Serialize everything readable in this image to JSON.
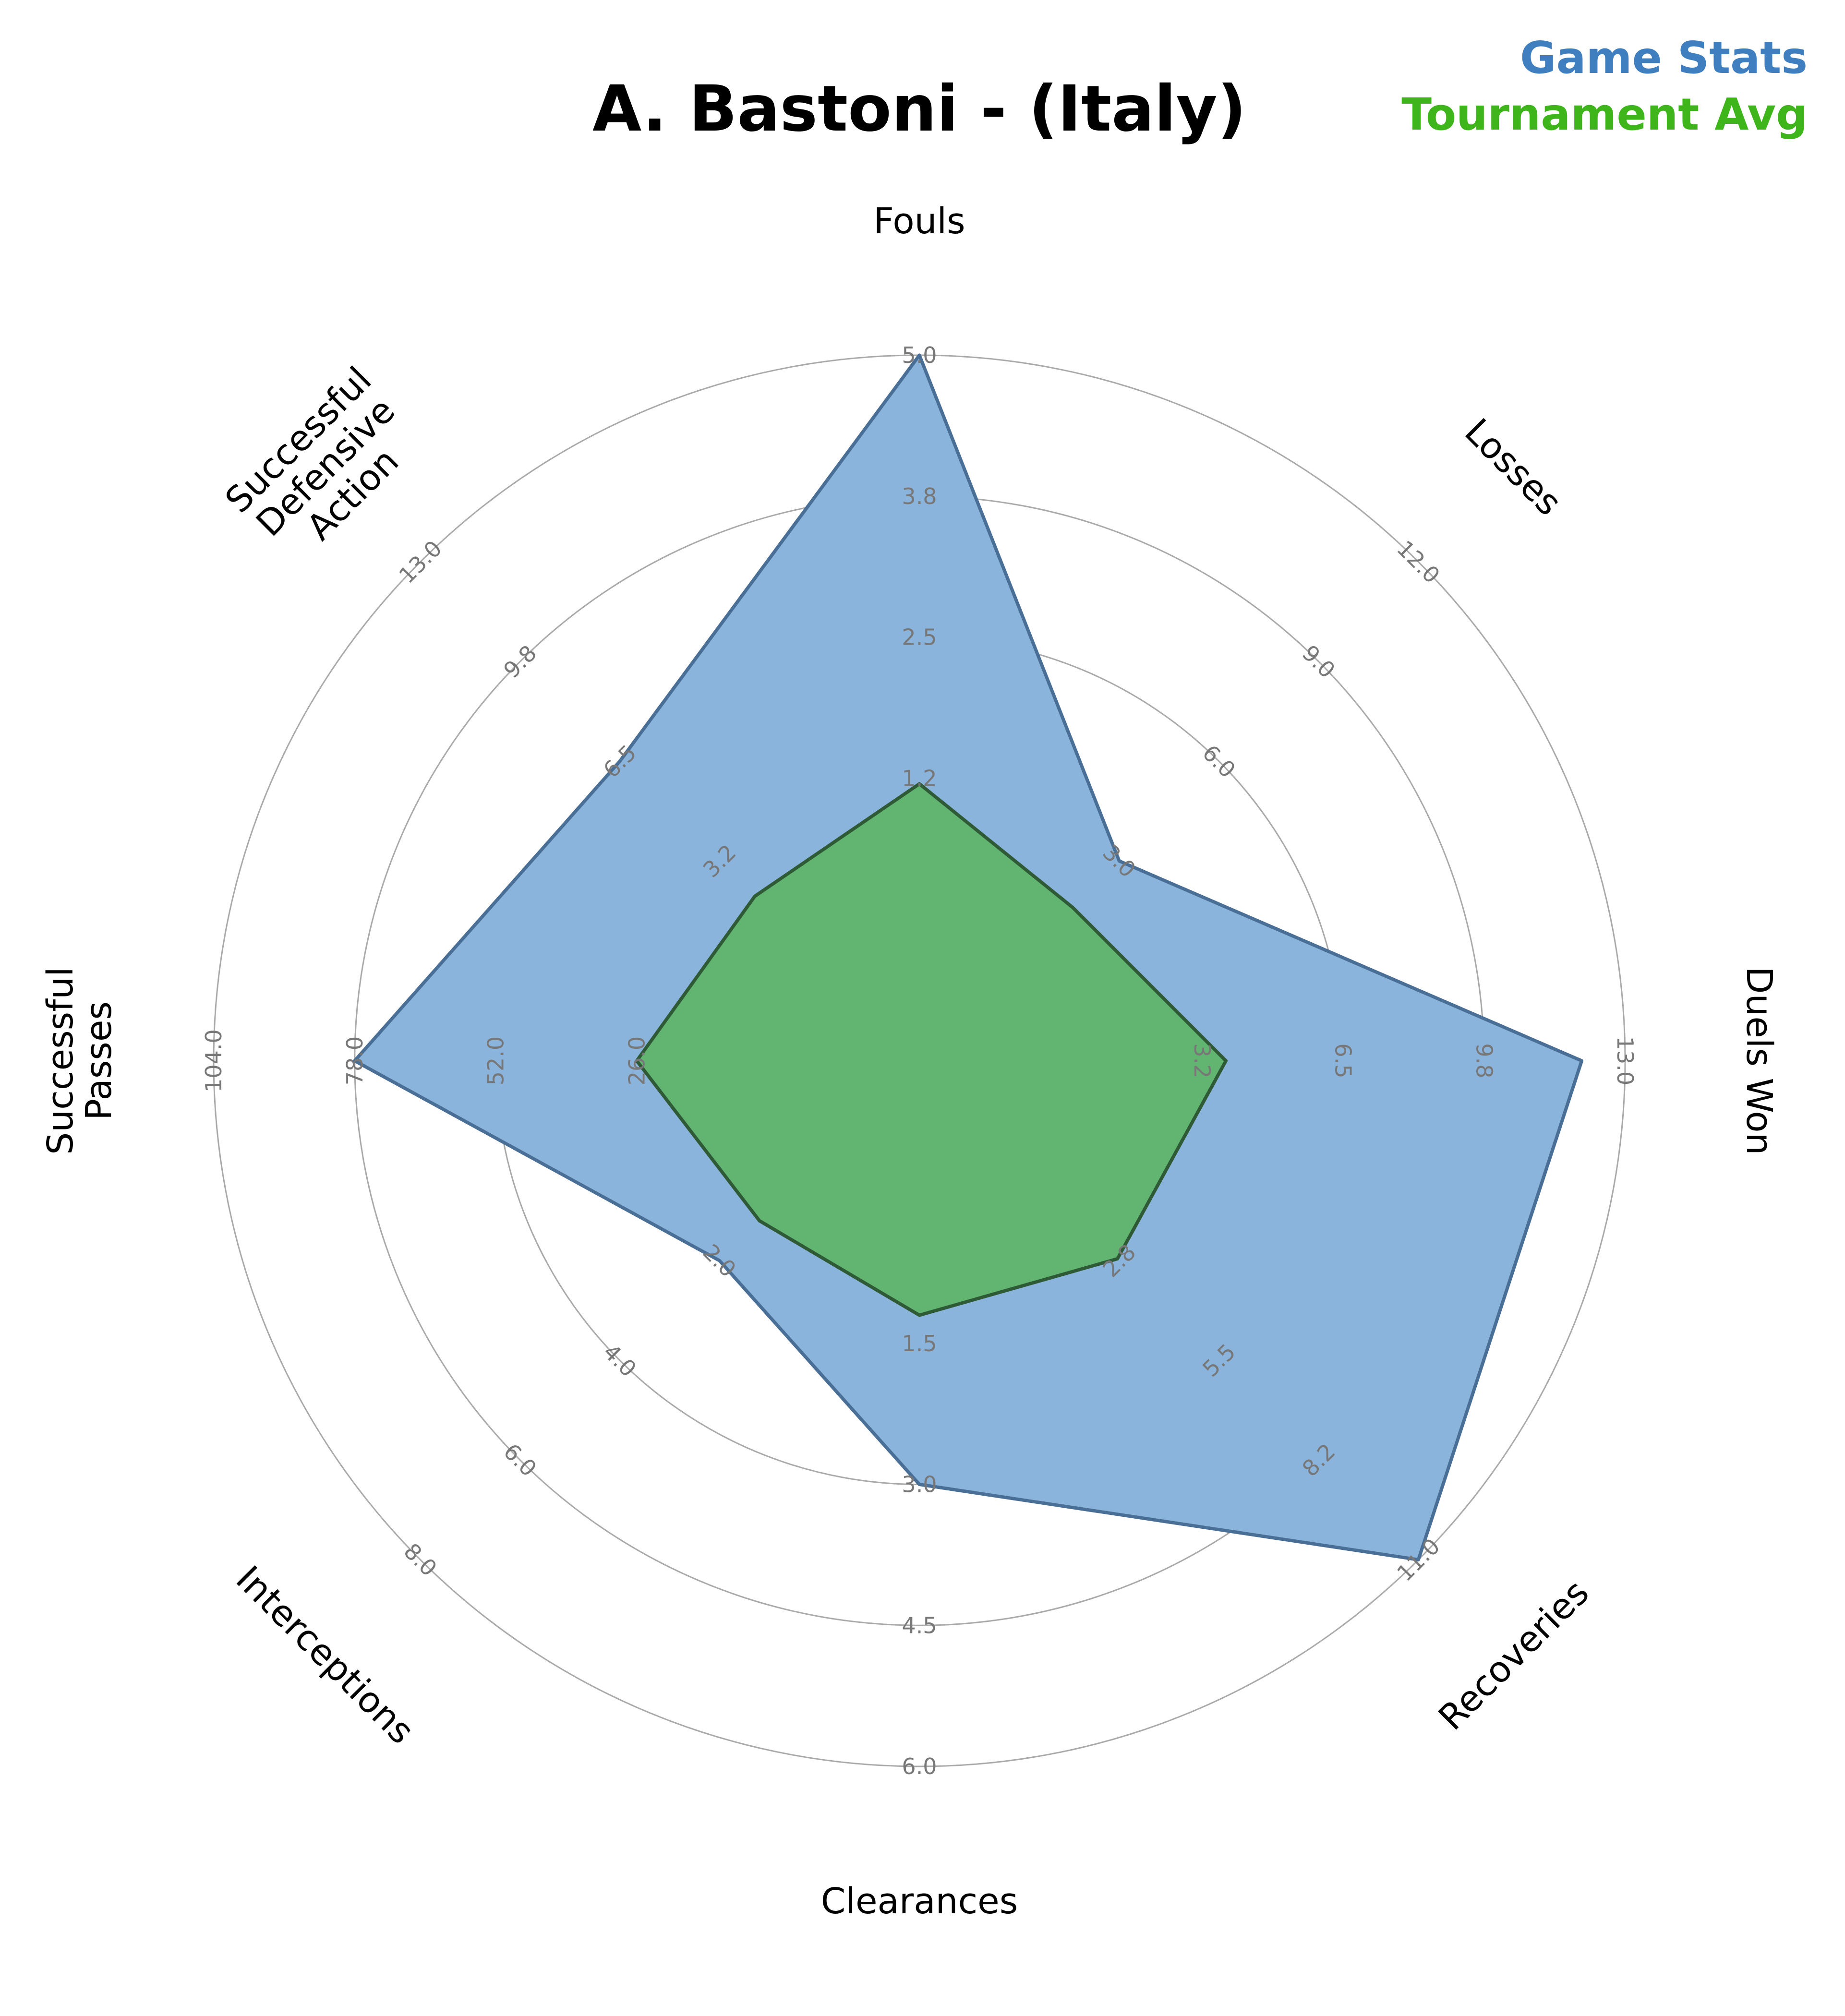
{
  "chart_data": {
    "type": "radar",
    "title": "A. Bastoni - (Italy)",
    "categories": [
      "Fouls",
      "Losses",
      "Duels Won",
      "Recoveries",
      "Clearances",
      "Interceptions",
      "Successful Passes",
      "Successful Defensive Action"
    ],
    "axis_max": [
      5.0,
      12.0,
      13.0,
      11.0,
      6.0,
      8.0,
      104.0,
      13.0
    ],
    "tick_labels": [
      [
        "1.2",
        "2.5",
        "3.8",
        "5.0"
      ],
      [
        "3.0",
        "6.0",
        "9.0",
        "12.0"
      ],
      [
        "3.2",
        "6.5",
        "9.8",
        "13.0"
      ],
      [
        "2.8",
        "5.5",
        "8.2",
        "11.0"
      ],
      [
        "1.5",
        "3.0",
        "4.5",
        "6.0"
      ],
      [
        "2.0",
        "4.0",
        "6.0",
        "8.0"
      ],
      [
        "26.0",
        "52.0",
        "78.0",
        "104.0"
      ],
      [
        "3.2",
        "6.5",
        "9.8",
        "13.0"
      ]
    ],
    "series": [
      {
        "name": "Game Stats",
        "color": "#3f7fbf",
        "fill": "#8ab4dc",
        "stroke": "#4a6f96",
        "values": [
          5.0,
          3.0,
          12.0,
          11.0,
          3.0,
          2.0,
          78.0,
          6.5
        ]
      },
      {
        "name": "Tournament Avg",
        "color": "#3db51b",
        "fill": "#5db567",
        "stroke": "#2f5a36",
        "values": [
          1.2,
          1.6,
          3.8,
          2.7,
          1.2,
          1.2,
          26.0,
          2.1
        ]
      }
    ],
    "legend": "top-right",
    "grid": true
  }
}
